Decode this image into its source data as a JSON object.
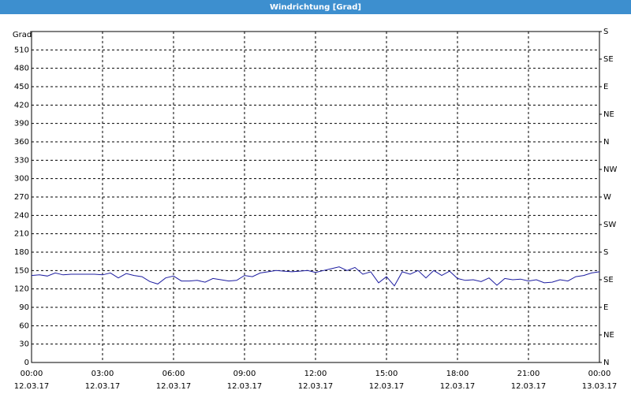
{
  "chart_data": {
    "type": "line",
    "title": "Windrichtung [Grad]",
    "y_label": "Grad",
    "x": [
      0,
      20,
      40,
      60,
      80,
      100,
      120,
      140,
      160,
      180,
      200,
      220,
      240,
      260,
      280,
      300,
      320,
      340,
      360,
      380,
      400,
      420,
      440,
      460,
      480,
      500,
      520,
      540,
      560,
      580,
      600,
      620,
      640,
      660,
      680,
      700,
      720,
      740,
      760,
      780,
      800,
      820,
      840,
      860,
      880,
      900,
      920,
      940,
      960,
      980,
      1000,
      1020,
      1040,
      1060,
      1080,
      1100,
      1120,
      1140,
      1160,
      1180,
      1200,
      1220,
      1240,
      1260,
      1280,
      1300,
      1320,
      1340,
      1360,
      1380,
      1400,
      1420,
      1440
    ],
    "values": [
      142,
      143,
      141,
      146,
      143,
      144,
      144,
      144,
      144,
      143,
      146,
      138,
      145,
      142,
      140,
      132,
      128,
      138,
      141,
      133,
      133,
      134,
      131,
      137,
      135,
      133,
      134,
      142,
      140,
      146,
      148,
      150,
      149,
      148,
      149,
      150,
      147,
      150,
      153,
      156,
      150,
      155,
      144,
      148,
      130,
      140,
      125,
      148,
      144,
      150,
      138,
      150,
      142,
      149,
      137,
      134,
      135,
      132,
      138,
      126,
      137,
      135,
      136,
      133,
      135,
      130,
      131,
      135,
      133,
      140,
      142,
      146,
      148
    ],
    "color": "#1c1ca0",
    "xlim": [
      0,
      1440
    ],
    "xticks": [
      {
        "value": 0,
        "label": "00:00",
        "date": "12.03.17"
      },
      {
        "value": 180,
        "label": "03:00",
        "date": "12.03.17"
      },
      {
        "value": 360,
        "label": "06:00",
        "date": "12.03.17"
      },
      {
        "value": 540,
        "label": "09:00",
        "date": "12.03.17"
      },
      {
        "value": 720,
        "label": "12:00",
        "date": "12.03.17"
      },
      {
        "value": 900,
        "label": "15:00",
        "date": "12.03.17"
      },
      {
        "value": 1080,
        "label": "18:00",
        "date": "12.03.17"
      },
      {
        "value": 1260,
        "label": "21:00",
        "date": "12.03.17"
      },
      {
        "value": 1440,
        "label": "00:00",
        "date": "13.03.17"
      }
    ],
    "ylim": [
      0,
      540
    ],
    "yticks": [
      0,
      30,
      60,
      90,
      120,
      150,
      180,
      210,
      240,
      270,
      300,
      330,
      360,
      390,
      420,
      450,
      480,
      510
    ],
    "y2lim": [
      0,
      540
    ],
    "y2ticks": [
      {
        "value": 0,
        "label": "N"
      },
      {
        "value": 45,
        "label": "NE"
      },
      {
        "value": 90,
        "label": "E"
      },
      {
        "value": 135,
        "label": "SE"
      },
      {
        "value": 180,
        "label": "S"
      },
      {
        "value": 225,
        "label": "SW"
      },
      {
        "value": 270,
        "label": "W"
      },
      {
        "value": 315,
        "label": "NW"
      },
      {
        "value": 360,
        "label": "N"
      },
      {
        "value": 405,
        "label": "NE"
      },
      {
        "value": 450,
        "label": "E"
      },
      {
        "value": 495,
        "label": "SE"
      },
      {
        "value": 540,
        "label": "S"
      }
    ],
    "grid": true
  }
}
